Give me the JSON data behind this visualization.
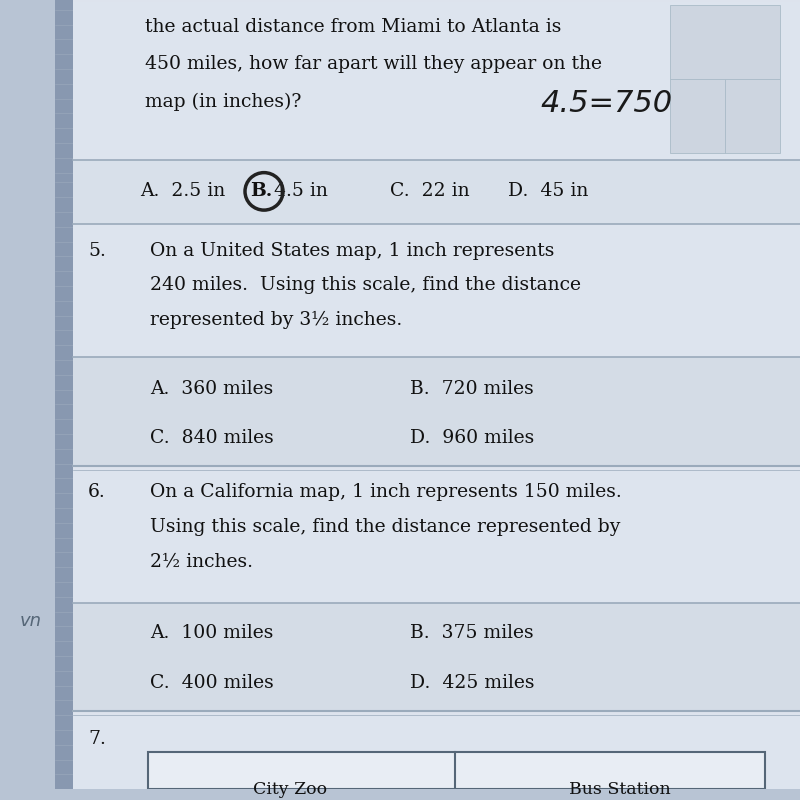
{
  "bg_color": "#b8c4d4",
  "page_bg": "#dde3ed",
  "left_border_color": "#8898b0",
  "text_color": "#111111",
  "handwriting_color": "#1a1a1a",
  "divider_color": "#9aaabb",
  "top_text_lines": [
    "the actual distance from Miami to Atlanta is",
    "450 miles, how far apart will they appear on the",
    "map (in inches)?"
  ],
  "handwriting_top": "4.5=750",
  "q4_options": [
    [
      "A.",
      "2.5 in",
      false
    ],
    [
      "B.",
      "4.5 in",
      true
    ],
    [
      "C.",
      "22 in",
      false
    ],
    [
      "D.",
      "45 in",
      false
    ]
  ],
  "q5_number": "5.",
  "q5_text_lines": [
    "On a United States map, 1 inch represents",
    "240 miles.  Using this scale, find the distance",
    "represented by 3½ inches."
  ],
  "q5_options_row1": [
    "A.",
    "360 miles",
    "B.",
    "720 miles"
  ],
  "q5_options_row2": [
    "C.",
    "840 miles",
    "D.",
    "960 miles"
  ],
  "q6_number": "6.",
  "q6_text_lines": [
    "On a California map, 1 inch represents 150 miles.",
    "Using this scale, find the distance represented by",
    "2½ inches."
  ],
  "q6_options_row1": [
    "A.",
    "100 miles",
    "B.",
    "375 miles"
  ],
  "q6_options_row2": [
    "C.",
    "400 miles",
    "D.",
    "425 miles"
  ],
  "q7_number": "7.",
  "q7_table_headers": [
    "City Zoo",
    "Bus Station"
  ],
  "left_margin_text": "n",
  "left_margin_text2": "vn"
}
